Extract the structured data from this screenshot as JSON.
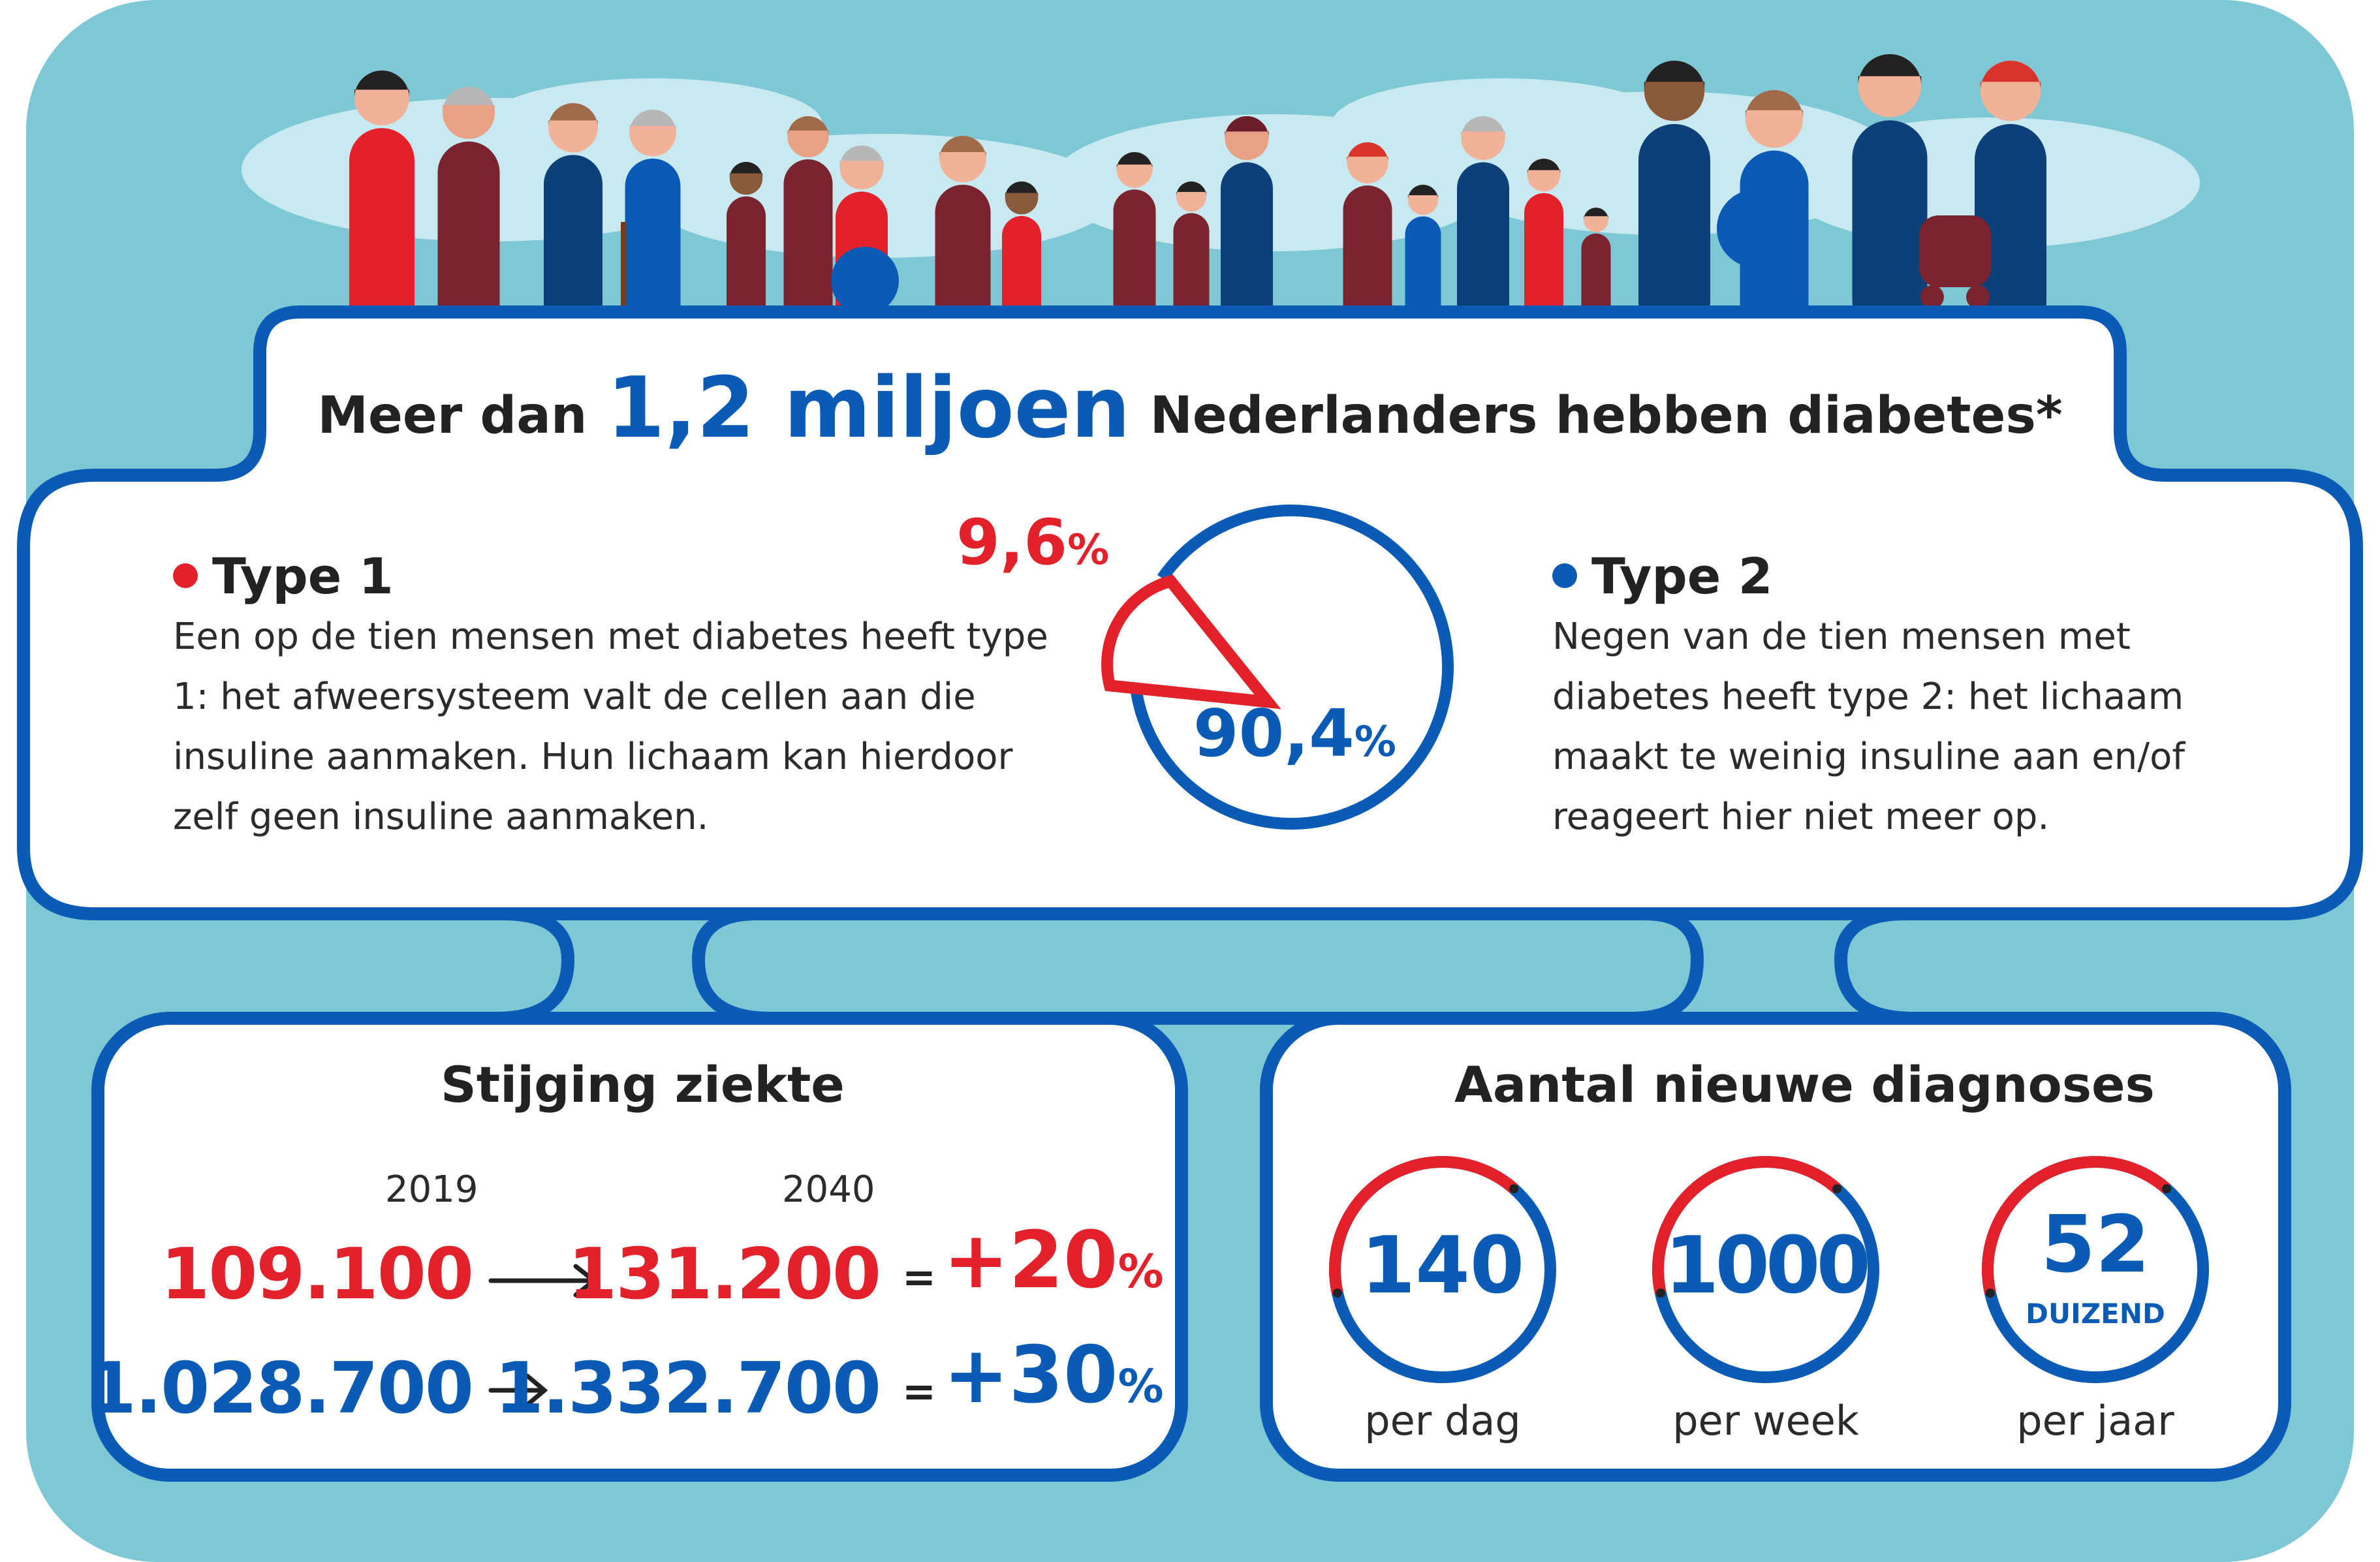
{
  "headline": {
    "prefix": "Meer dan",
    "highlight": "1,2 miljoen",
    "suffix": "Nederlanders hebben diabetes*"
  },
  "type1": {
    "title": "Type 1",
    "body": "Een op de tien mensen met diabetes heeft type 1: het afweersysteem valt de cellen aan die insuline aanmaken. Hun lichaam kan hierdoor zelf geen insuline aanmaken.",
    "color": "#e3212b"
  },
  "type2": {
    "title": "Type 2",
    "body": "Negen van de tien mensen met diabetes heeft type 2: het lichaam maakt te weinig insuline aan en/of reageert hier niet meer op.",
    "color": "#0a5bb5"
  },
  "pie": {
    "slices": [
      {
        "label": "Type 1",
        "value": 9.6,
        "value_text": "9,6",
        "color": "#e3212b"
      },
      {
        "label": "Type 2",
        "value": 90.4,
        "value_text": "90,4",
        "color": "#0a5bb5"
      }
    ],
    "unit": "%"
  },
  "rise": {
    "title": "Stijging ziekte",
    "year_from": "2019",
    "year_to": "2040",
    "rows": [
      {
        "from": "109.100",
        "to": "131.200",
        "eq": "=",
        "change": "+20",
        "unit": "%",
        "color": "#e3212b"
      },
      {
        "from": "1.028.700",
        "to": "1.332.700",
        "eq": "=",
        "change": "+30",
        "unit": "%",
        "color": "#0a5bb5"
      }
    ]
  },
  "diagnoses": {
    "title": "Aantal nieuwe diagnoses",
    "gauges": [
      {
        "value": "140",
        "label": "per dag"
      },
      {
        "value": "1000",
        "label": "per week"
      },
      {
        "value": "52",
        "sub": "DUIZEND",
        "label": "per jaar"
      }
    ],
    "arc_fraction": 0.4
  },
  "colors": {
    "background": "#7ec8d6",
    "panel": "#ffffff",
    "outline": "#0a5bb5",
    "red": "#e3212b",
    "blue": "#0a5bb5",
    "darkred": "#7a2430",
    "navy": "#0d3f78",
    "cloud": "#c9e9f0"
  },
  "illustration": {
    "subject": "row of diverse people"
  }
}
